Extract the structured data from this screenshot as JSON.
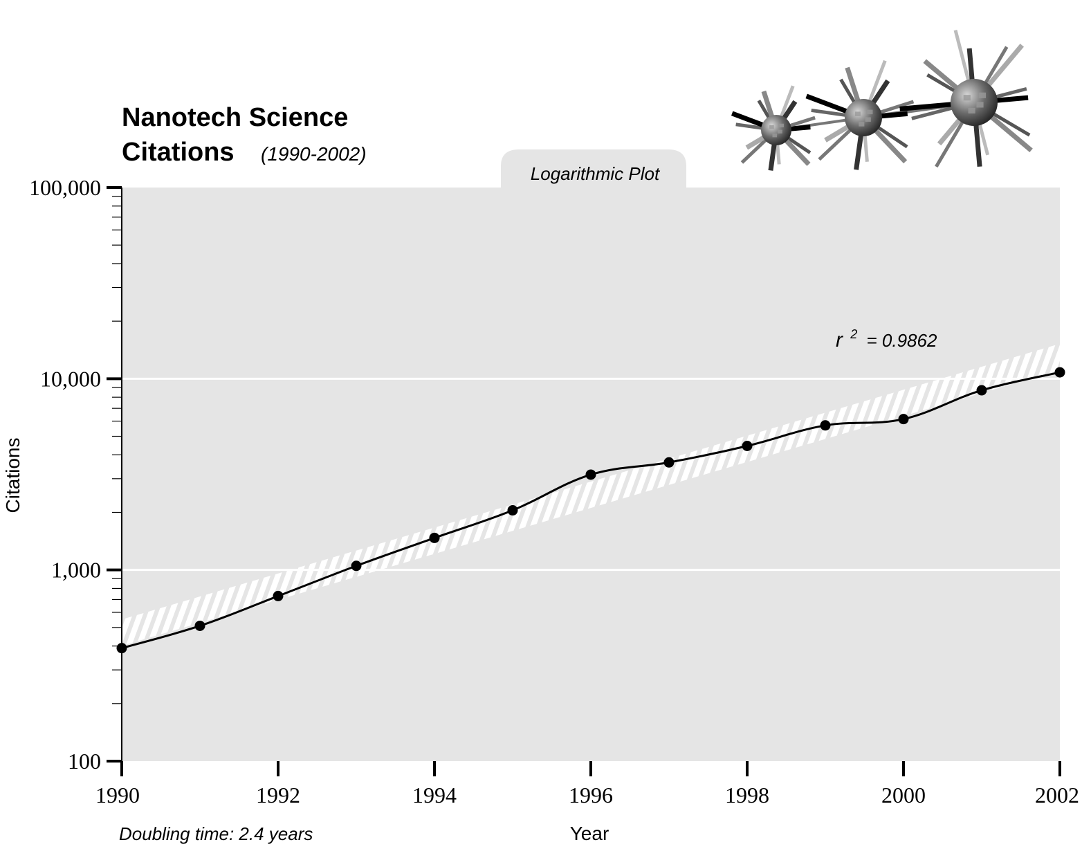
{
  "chart_data": {
    "type": "line",
    "title_line1": "Nanotech Science",
    "title_line2": "Citations",
    "subtitle": "(1990-2002)",
    "plot_label": "Logarithmic Plot",
    "xlabel": "Year",
    "ylabel": "Citations",
    "yscale": "log",
    "xlim": [
      1990,
      2002
    ],
    "ylim": [
      100,
      100000
    ],
    "x_ticks": [
      1990,
      1992,
      1994,
      1996,
      1998,
      2000,
      2002
    ],
    "x_tick_labels": [
      "1990",
      "1992",
      "1994",
      "1996",
      "1998",
      "2000",
      "2002"
    ],
    "y_ticks": [
      100,
      1000,
      10000,
      100000
    ],
    "y_tick_labels": [
      "100",
      "1,000",
      "10,000",
      "100,000"
    ],
    "gridlines_y": [
      1000,
      10000
    ],
    "series": [
      {
        "name": "Citations",
        "x": [
          1990,
          1991,
          1992,
          1993,
          1994,
          1995,
          1996,
          1997,
          1998,
          1999,
          2000,
          2001,
          2002
        ],
        "values": [
          390,
          510,
          730,
          1050,
          1470,
          2050,
          3150,
          3650,
          4450,
          5700,
          6150,
          8700,
          10800
        ]
      }
    ],
    "trend_line": {
      "type": "exponential fit",
      "x": [
        1990,
        2002
      ],
      "y": [
        470,
        13000
      ]
    },
    "annotation_r2": {
      "prefix": "r",
      "sup": "2",
      "text": "= 0.9862"
    },
    "doubling_note": "Doubling time: 2.4 years",
    "colors": {
      "plot_bg": "#e5e5e5",
      "line": "#000000",
      "trend": "#ffffff",
      "grid": "#ffffff"
    }
  }
}
